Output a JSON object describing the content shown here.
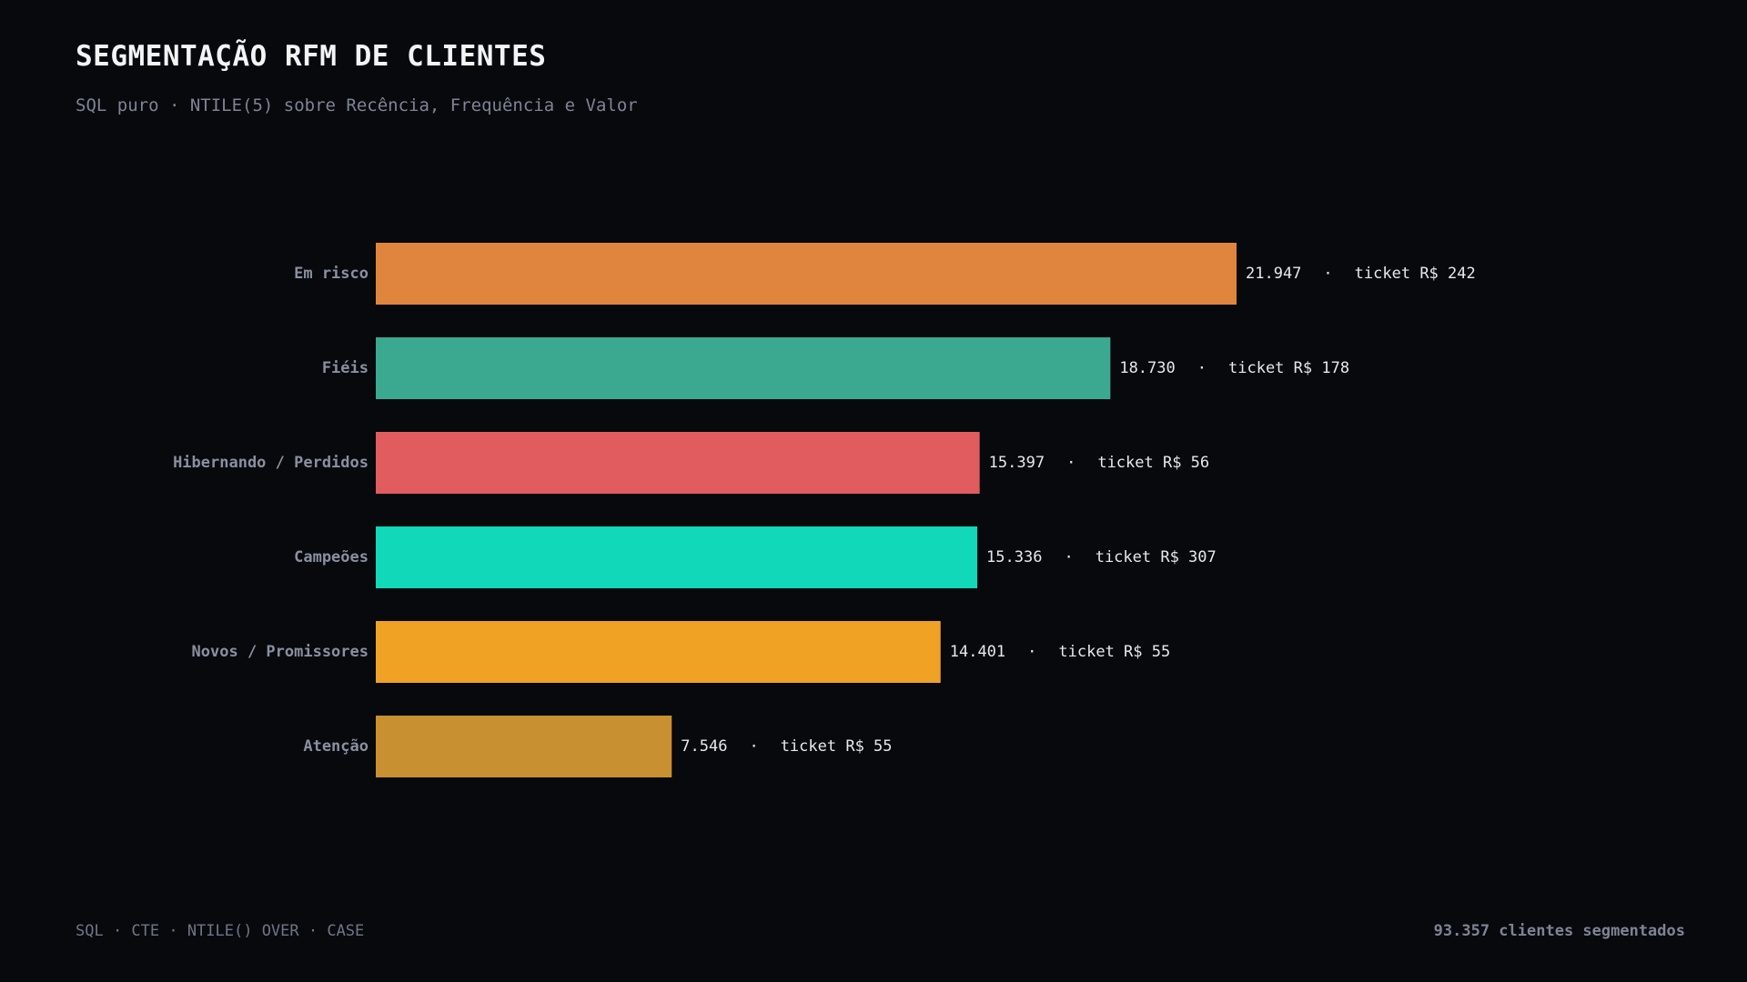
{
  "header": {
    "title": "SEGMENTAÇÃO RFM DE CLIENTES",
    "subtitle": "SQL puro · NTILE(5) sobre Recência, Frequência e Valor"
  },
  "footer": {
    "left_text": "SQL · CTE · NTILE() OVER · CASE",
    "right_text": "93.357 clientes segmentados"
  },
  "colors": {
    "background": "#07090d",
    "category_label": "#8a90a0",
    "value_label": "#e6e8ec"
  },
  "chart_data": {
    "type": "bar",
    "orientation": "horizontal",
    "title": "SEGMENTAÇÃO RFM DE CLIENTES",
    "subtitle": "SQL puro · NTILE(5) sobre Recência, Frequência e Valor",
    "xlabel": "",
    "ylabel": "",
    "xlim": [
      0,
      21947
    ],
    "grid": false,
    "legend": "none",
    "categories": [
      "Em risco",
      "Fiéis",
      "Hibernando / Perdidos",
      "Campeões",
      "Novos / Promissores",
      "Atenção"
    ],
    "values": [
      21947,
      18730,
      15397,
      15336,
      14401,
      7546
    ],
    "value_labels": [
      "21.947",
      "18.730",
      "15.397",
      "15.336",
      "14.401",
      "7.546"
    ],
    "ticket_labels": [
      "ticket R$ 242",
      "ticket R$ 178",
      "ticket R$ 56",
      "ticket R$ 307",
      "ticket R$ 55",
      "ticket R$ 55"
    ],
    "separator": "·",
    "bar_colors": [
      "#e0853d",
      "#3ba990",
      "#e05c5f",
      "#10d8b8",
      "#f0a225",
      "#c89030"
    ]
  }
}
